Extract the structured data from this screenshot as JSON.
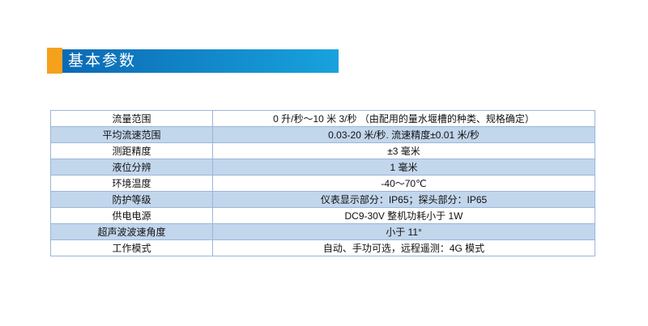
{
  "header": {
    "title": "基本参数"
  },
  "colors": {
    "accent_orange": "#F5A11C",
    "banner_gradient_start": "#0B6AB4",
    "banner_gradient_end": "#18A2DE",
    "table_border": "#9CB6DA",
    "alt_row_fill": "#C2D6EC"
  },
  "table": {
    "rows": [
      {
        "label": "流量范围",
        "value": "0 升/秒～10 米 3/秒 （由配用的量水堰槽的种类、规格确定）"
      },
      {
        "label": "平均流速范围",
        "value": "0.03-20 米/秒. 流速精度±0.01 米/秒"
      },
      {
        "label": "测距精度",
        "value": "±3 毫米"
      },
      {
        "label": "液位分辨",
        "value": "1 毫米"
      },
      {
        "label": "环境温度",
        "value": "-40～70℃"
      },
      {
        "label": "防护等级",
        "value": "仪表显示部分：IP65；探头部分：IP65"
      },
      {
        "label": "供电电源",
        "value": "DC9-30V 整机功耗小于 1W"
      },
      {
        "label": "超声波波速角度",
        "value": "小于 11°"
      },
      {
        "label": "工作模式",
        "value": "自动、手功可选，远程遥测：4G 模式"
      }
    ]
  }
}
